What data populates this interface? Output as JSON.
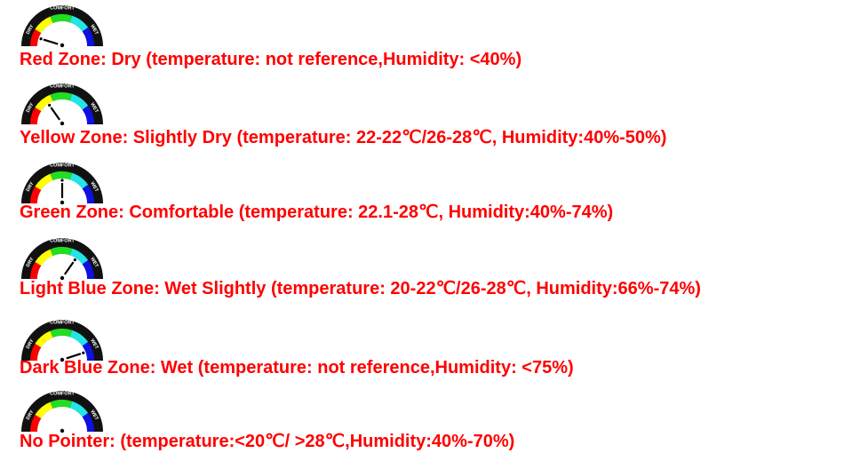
{
  "gauge": {
    "scale_labels": {
      "left": "DRY",
      "top": "COMFORT",
      "right": "WET"
    },
    "zone_colors": [
      "#ff0000",
      "#ffff00",
      "#22dd22",
      "#22e5e5",
      "#1010e0"
    ]
  },
  "rows": [
    {
      "text": "Red Zone: Dry (temperature: not reference,Humidity: <40%)",
      "pointer": "red"
    },
    {
      "text": "Yellow Zone: Slightly Dry (temperature: 22-22℃/26-28℃, Humidity:40%-50%)",
      "pointer": "yellow"
    },
    {
      "text": "Green Zone: Comfortable (temperature: 22.1-28℃, Humidity:40%-74%)",
      "pointer": "green"
    },
    {
      "text": "Light Blue Zone: Wet Slightly (temperature: 20-22℃/26-28℃, Humidity:66%-74%)",
      "pointer": "light-blue"
    },
    {
      "text": "Dark Blue Zone: Wet (temperature: not reference,Humidity: <75%)",
      "pointer": "dark-blue"
    },
    {
      "text": "No Pointer: (temperature:<20℃/ >28℃,Humidity:40%-70%)",
      "pointer": "none"
    }
  ]
}
